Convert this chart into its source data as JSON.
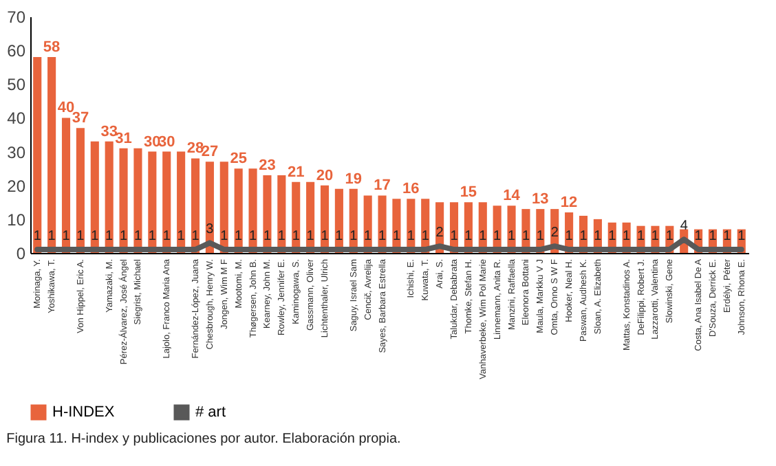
{
  "chart_data": {
    "type": "bar",
    "categories": [
      "Morinaga, Y.",
      "Yoshikawa, T.",
      null,
      "Von Hippel, Eric A.",
      null,
      "Yamazaki, M.",
      "Pérez-Álvarez, José Ángel",
      "Siegrist, Michael",
      null,
      "Lajolo, Franco Maria Ana",
      null,
      "Fernández-López, Juana",
      "Chesbrough, Henry W.",
      "Jongen, Wim M F",
      "Mootomi, M.",
      "Thøgersen, John B.",
      "Kearney, John M.",
      "Rowley, Jennifer E.",
      "Kaminogawa, S.",
      "Gassmann, Oliver",
      "Lichtenthaler, Ulrich",
      null,
      "Saguy, Israel Sam",
      "Cencič, Avrelija",
      "Sayes, Barbara Estrella",
      null,
      "Ichishi, E.",
      "Kuwata, T.",
      "Arai, S.",
      "Talukdar, Debabrata",
      "Thomke, Stefan H.",
      "Vanhaverbeke, Wim Pol Marie",
      "Linnemann, Anita R.",
      "Manzini, Raffaella",
      "Eleonora Bottani",
      "Maula, Markku V J",
      "Omta, Onno S W F",
      "Hooker, Neal H.",
      "Paswan, Audhesh K.",
      "Sloan, A. Elizabeth",
      null,
      "Mattas, Konstadinos A.",
      "DeFilippi, Robert J.",
      "Lazzarotti, Valentina",
      "Slowinski, Gene",
      null,
      "Costa, Ana Isabel De A",
      "D'Souza, Derrick E.",
      "Erdélyi, Péter",
      "Johnson, Rhona E."
    ],
    "series": [
      {
        "name": "H-INDEX",
        "color": "#e8643c",
        "values": [
          58,
          58,
          40,
          37,
          33,
          33,
          31,
          31,
          30,
          30,
          30,
          28,
          27,
          27,
          25,
          25,
          23,
          23,
          21,
          21,
          20,
          19,
          19,
          17,
          17,
          16,
          16,
          16,
          15,
          15,
          15,
          15,
          14,
          14,
          13,
          13,
          13,
          12,
          11,
          10,
          9,
          9,
          8,
          8,
          8,
          7,
          7,
          7,
          7,
          7
        ],
        "value_labels": [
          null,
          "58",
          "40",
          "37",
          null,
          "33",
          "31",
          null,
          "30",
          "30",
          null,
          "28",
          "27",
          null,
          "25",
          null,
          "23",
          null,
          "21",
          null,
          "20",
          null,
          "19",
          null,
          "17",
          null,
          "16",
          null,
          null,
          null,
          "15",
          null,
          null,
          "14",
          null,
          "13",
          null,
          "12",
          null,
          null,
          null,
          null,
          null,
          null,
          null,
          null,
          null,
          null,
          null,
          null
        ]
      },
      {
        "name": "# art",
        "type": "line",
        "color": "#595959",
        "values": [
          1,
          1,
          1,
          1,
          1,
          1,
          1,
          1,
          1,
          1,
          1,
          1,
          3,
          1,
          1,
          1,
          1,
          1,
          1,
          1,
          1,
          1,
          1,
          1,
          1,
          1,
          1,
          1,
          2,
          1,
          1,
          1,
          1,
          1,
          1,
          1,
          2,
          1,
          1,
          1,
          1,
          1,
          1,
          1,
          1,
          4,
          1,
          1,
          1,
          1
        ],
        "value_labels": [
          "1",
          "1",
          "1",
          "1",
          "1",
          "1",
          "1",
          "1",
          "1",
          "1",
          "1",
          "1",
          "3",
          "1",
          "1",
          "1",
          "1",
          "1",
          "1",
          "1",
          "1",
          "1",
          "1",
          "1",
          "1",
          "1",
          "1",
          "1",
          "2",
          "1",
          "1",
          "1",
          "1",
          "1",
          "1",
          "1",
          "2",
          "1",
          "1",
          "1",
          "1",
          "1",
          "1",
          "1",
          "1",
          "4",
          "1",
          "1",
          "1",
          "1"
        ]
      }
    ],
    "ylim": [
      0,
      70
    ],
    "yticks": [
      0,
      10,
      20,
      30,
      40,
      50,
      60,
      70
    ],
    "grid": false,
    "legend": "bottom",
    "annotations": [
      "Figura 11. H-index y publicaciones por autor. Elaboración propia."
    ]
  }
}
